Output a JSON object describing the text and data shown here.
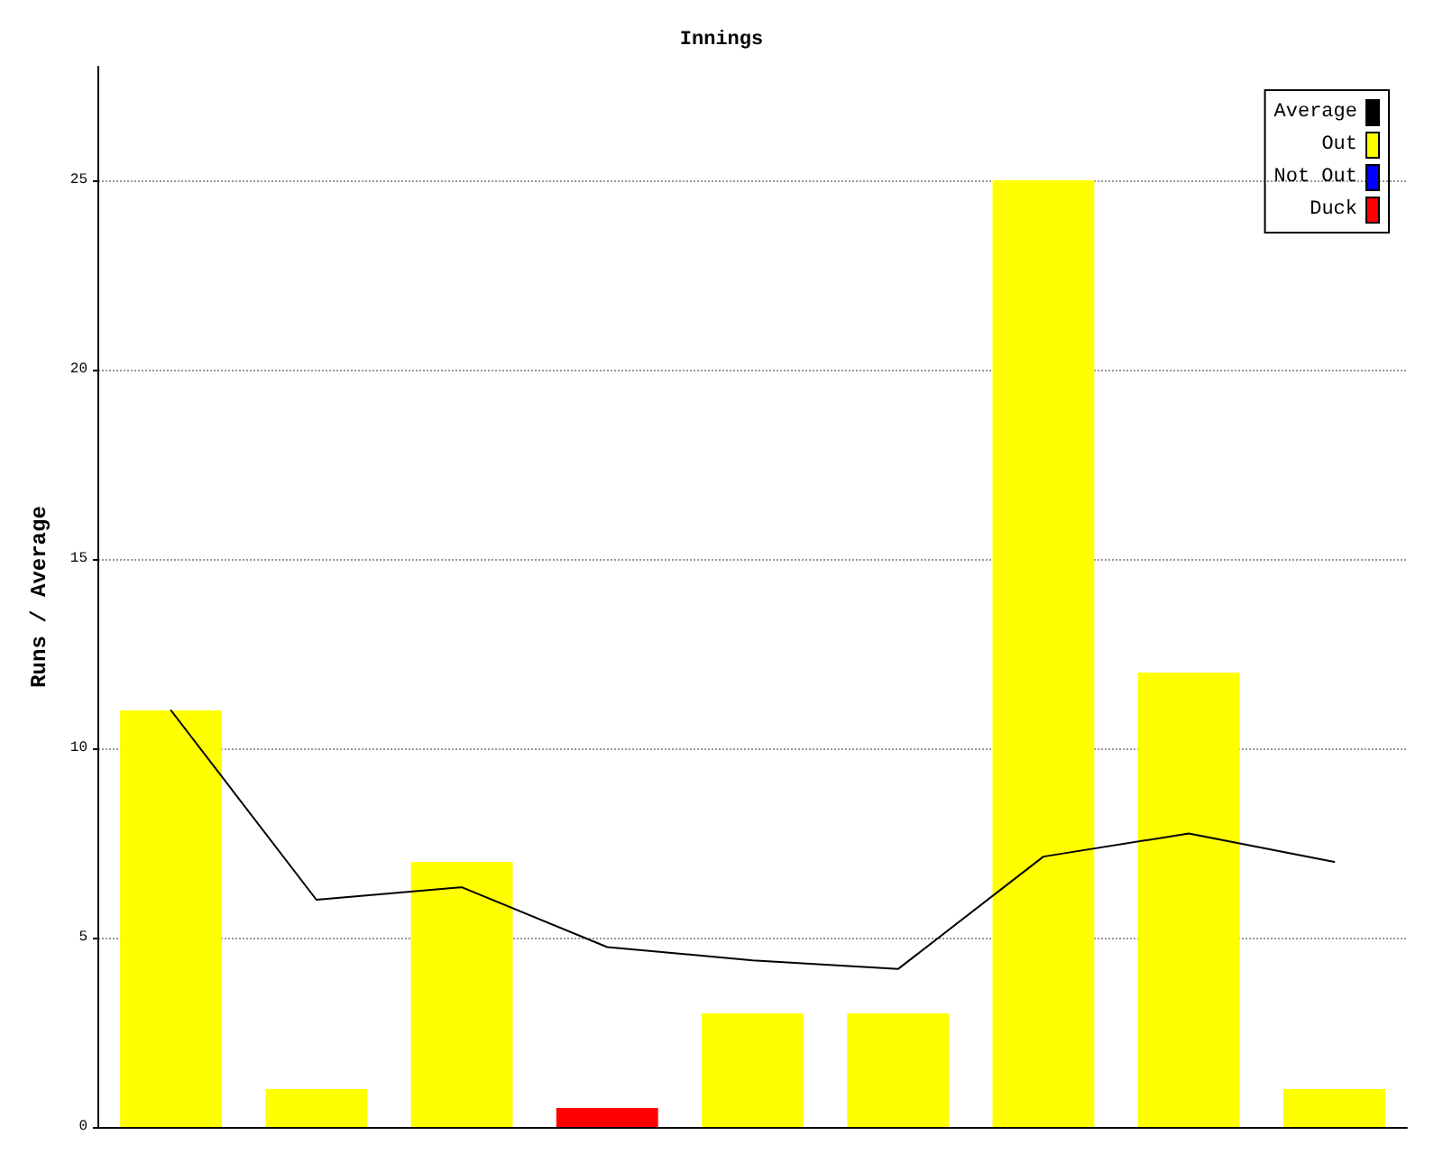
{
  "chart_data": {
    "type": "bar",
    "title": "Innings",
    "ylabel": "Runs / Average",
    "categories": [
      null,
      null,
      null,
      null,
      null,
      null,
      null,
      null,
      null
    ],
    "stacked": true,
    "series": [
      {
        "name": "Average",
        "type": "line",
        "color": "#000000",
        "values": [
          11,
          6,
          6.33,
          4.75,
          4.4,
          4.17,
          7.14,
          7.75,
          7
        ]
      },
      {
        "name": "Out",
        "color": "#ffff00",
        "values": [
          11,
          1,
          7,
          null,
          3,
          3,
          25,
          12,
          1
        ]
      },
      {
        "name": "Not Out",
        "color": "#0000ff",
        "values": [
          null,
          null,
          null,
          null,
          null,
          null,
          null,
          null,
          null
        ]
      },
      {
        "name": "Duck",
        "color": "#ff0000",
        "values": [
          null,
          null,
          null,
          0.5,
          null,
          null,
          null,
          null,
          null
        ]
      }
    ],
    "ylim": [
      0,
      28
    ],
    "yticks": [
      0,
      5,
      10,
      15,
      20,
      25
    ],
    "grid": "y",
    "legend": "top right",
    "tick_labels": "y",
    "marker": "none",
    "line_style": "solid"
  }
}
